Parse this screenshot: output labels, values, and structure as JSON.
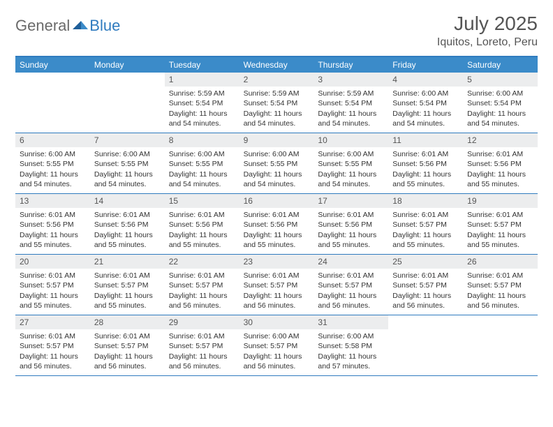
{
  "logo": {
    "part1": "General",
    "part2": "Blue"
  },
  "title": "July 2025",
  "location": "Iquitos, Loreto, Peru",
  "colors": {
    "header_bar": "#3b8bc9",
    "accent_line": "#2f7bbf",
    "daynum_bg": "#ecedee",
    "text": "#333333",
    "title_text": "#555555"
  },
  "weekdays": [
    "Sunday",
    "Monday",
    "Tuesday",
    "Wednesday",
    "Thursday",
    "Friday",
    "Saturday"
  ],
  "weeks": [
    [
      null,
      null,
      {
        "n": "1",
        "sr": "Sunrise: 5:59 AM",
        "ss": "Sunset: 5:54 PM",
        "d1": "Daylight: 11 hours",
        "d2": "and 54 minutes."
      },
      {
        "n": "2",
        "sr": "Sunrise: 5:59 AM",
        "ss": "Sunset: 5:54 PM",
        "d1": "Daylight: 11 hours",
        "d2": "and 54 minutes."
      },
      {
        "n": "3",
        "sr": "Sunrise: 5:59 AM",
        "ss": "Sunset: 5:54 PM",
        "d1": "Daylight: 11 hours",
        "d2": "and 54 minutes."
      },
      {
        "n": "4",
        "sr": "Sunrise: 6:00 AM",
        "ss": "Sunset: 5:54 PM",
        "d1": "Daylight: 11 hours",
        "d2": "and 54 minutes."
      },
      {
        "n": "5",
        "sr": "Sunrise: 6:00 AM",
        "ss": "Sunset: 5:54 PM",
        "d1": "Daylight: 11 hours",
        "d2": "and 54 minutes."
      }
    ],
    [
      {
        "n": "6",
        "sr": "Sunrise: 6:00 AM",
        "ss": "Sunset: 5:55 PM",
        "d1": "Daylight: 11 hours",
        "d2": "and 54 minutes."
      },
      {
        "n": "7",
        "sr": "Sunrise: 6:00 AM",
        "ss": "Sunset: 5:55 PM",
        "d1": "Daylight: 11 hours",
        "d2": "and 54 minutes."
      },
      {
        "n": "8",
        "sr": "Sunrise: 6:00 AM",
        "ss": "Sunset: 5:55 PM",
        "d1": "Daylight: 11 hours",
        "d2": "and 54 minutes."
      },
      {
        "n": "9",
        "sr": "Sunrise: 6:00 AM",
        "ss": "Sunset: 5:55 PM",
        "d1": "Daylight: 11 hours",
        "d2": "and 54 minutes."
      },
      {
        "n": "10",
        "sr": "Sunrise: 6:00 AM",
        "ss": "Sunset: 5:55 PM",
        "d1": "Daylight: 11 hours",
        "d2": "and 54 minutes."
      },
      {
        "n": "11",
        "sr": "Sunrise: 6:01 AM",
        "ss": "Sunset: 5:56 PM",
        "d1": "Daylight: 11 hours",
        "d2": "and 55 minutes."
      },
      {
        "n": "12",
        "sr": "Sunrise: 6:01 AM",
        "ss": "Sunset: 5:56 PM",
        "d1": "Daylight: 11 hours",
        "d2": "and 55 minutes."
      }
    ],
    [
      {
        "n": "13",
        "sr": "Sunrise: 6:01 AM",
        "ss": "Sunset: 5:56 PM",
        "d1": "Daylight: 11 hours",
        "d2": "and 55 minutes."
      },
      {
        "n": "14",
        "sr": "Sunrise: 6:01 AM",
        "ss": "Sunset: 5:56 PM",
        "d1": "Daylight: 11 hours",
        "d2": "and 55 minutes."
      },
      {
        "n": "15",
        "sr": "Sunrise: 6:01 AM",
        "ss": "Sunset: 5:56 PM",
        "d1": "Daylight: 11 hours",
        "d2": "and 55 minutes."
      },
      {
        "n": "16",
        "sr": "Sunrise: 6:01 AM",
        "ss": "Sunset: 5:56 PM",
        "d1": "Daylight: 11 hours",
        "d2": "and 55 minutes."
      },
      {
        "n": "17",
        "sr": "Sunrise: 6:01 AM",
        "ss": "Sunset: 5:56 PM",
        "d1": "Daylight: 11 hours",
        "d2": "and 55 minutes."
      },
      {
        "n": "18",
        "sr": "Sunrise: 6:01 AM",
        "ss": "Sunset: 5:57 PM",
        "d1": "Daylight: 11 hours",
        "d2": "and 55 minutes."
      },
      {
        "n": "19",
        "sr": "Sunrise: 6:01 AM",
        "ss": "Sunset: 5:57 PM",
        "d1": "Daylight: 11 hours",
        "d2": "and 55 minutes."
      }
    ],
    [
      {
        "n": "20",
        "sr": "Sunrise: 6:01 AM",
        "ss": "Sunset: 5:57 PM",
        "d1": "Daylight: 11 hours",
        "d2": "and 55 minutes."
      },
      {
        "n": "21",
        "sr": "Sunrise: 6:01 AM",
        "ss": "Sunset: 5:57 PM",
        "d1": "Daylight: 11 hours",
        "d2": "and 55 minutes."
      },
      {
        "n": "22",
        "sr": "Sunrise: 6:01 AM",
        "ss": "Sunset: 5:57 PM",
        "d1": "Daylight: 11 hours",
        "d2": "and 56 minutes."
      },
      {
        "n": "23",
        "sr": "Sunrise: 6:01 AM",
        "ss": "Sunset: 5:57 PM",
        "d1": "Daylight: 11 hours",
        "d2": "and 56 minutes."
      },
      {
        "n": "24",
        "sr": "Sunrise: 6:01 AM",
        "ss": "Sunset: 5:57 PM",
        "d1": "Daylight: 11 hours",
        "d2": "and 56 minutes."
      },
      {
        "n": "25",
        "sr": "Sunrise: 6:01 AM",
        "ss": "Sunset: 5:57 PM",
        "d1": "Daylight: 11 hours",
        "d2": "and 56 minutes."
      },
      {
        "n": "26",
        "sr": "Sunrise: 6:01 AM",
        "ss": "Sunset: 5:57 PM",
        "d1": "Daylight: 11 hours",
        "d2": "and 56 minutes."
      }
    ],
    [
      {
        "n": "27",
        "sr": "Sunrise: 6:01 AM",
        "ss": "Sunset: 5:57 PM",
        "d1": "Daylight: 11 hours",
        "d2": "and 56 minutes."
      },
      {
        "n": "28",
        "sr": "Sunrise: 6:01 AM",
        "ss": "Sunset: 5:57 PM",
        "d1": "Daylight: 11 hours",
        "d2": "and 56 minutes."
      },
      {
        "n": "29",
        "sr": "Sunrise: 6:01 AM",
        "ss": "Sunset: 5:57 PM",
        "d1": "Daylight: 11 hours",
        "d2": "and 56 minutes."
      },
      {
        "n": "30",
        "sr": "Sunrise: 6:00 AM",
        "ss": "Sunset: 5:57 PM",
        "d1": "Daylight: 11 hours",
        "d2": "and 56 minutes."
      },
      {
        "n": "31",
        "sr": "Sunrise: 6:00 AM",
        "ss": "Sunset: 5:58 PM",
        "d1": "Daylight: 11 hours",
        "d2": "and 57 minutes."
      },
      null,
      null
    ]
  ]
}
